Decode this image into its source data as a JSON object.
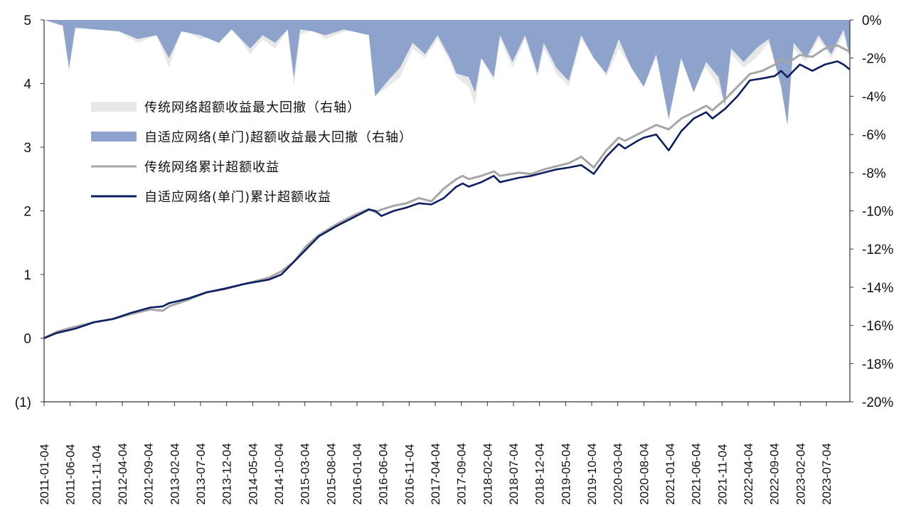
{
  "chart_data": {
    "type": "line+area",
    "y_left": {
      "ticks": [
        "(1)",
        "0",
        "1",
        "2",
        "3",
        "4",
        "5"
      ],
      "min": -1,
      "max": 5
    },
    "y_right": {
      "ticks": [
        "0%",
        "-2%",
        "-4%",
        "-6%",
        "-8%",
        "-10%",
        "-12%",
        "-14%",
        "-16%",
        "-18%",
        "-20%"
      ],
      "min": -20,
      "max": 0,
      "unit": "%"
    },
    "x_ticks": [
      "2011-01-04",
      "2011-06-04",
      "2011-11-04",
      "2012-04-04",
      "2012-09-04",
      "2013-02-04",
      "2013-07-04",
      "2013-12-04",
      "2014-05-04",
      "2014-10-04",
      "2015-03-04",
      "2015-08-04",
      "2016-01-04",
      "2016-06-04",
      "2016-11-04",
      "2017-04-04",
      "2017-09-04",
      "2018-02-04",
      "2018-07-04",
      "2018-12-04",
      "2019-05-04",
      "2019-10-04",
      "2020-03-04",
      "2020-08-04",
      "2021-01-04",
      "2021-06-04",
      "2021-11-04",
      "2022-04-04",
      "2022-09-04",
      "2023-02-04",
      "2023-07-04"
    ],
    "legend": [
      {
        "label": "传统网络超额收益最大回撤（右轴）",
        "kind": "area",
        "color": "#e8e8e8"
      },
      {
        "label": "自适应网络(单门)超额收益最大回撤（右轴）",
        "kind": "area",
        "color": "#8ea3cc"
      },
      {
        "label": "传统网络累计超额收益",
        "kind": "line",
        "color": "#a6a6a6"
      },
      {
        "label": "自适应网络(单门)累计超额收益",
        "kind": "line",
        "color": "#0d1f63"
      }
    ],
    "series": [
      {
        "name": "传统网络累计超额收益",
        "axis": "left",
        "color": "#a6a6a6",
        "points": [
          [
            0,
            0
          ],
          [
            2,
            0.1
          ],
          [
            5,
            0.18
          ],
          [
            8,
            0.25
          ],
          [
            11,
            0.3
          ],
          [
            14,
            0.38
          ],
          [
            17,
            0.45
          ],
          [
            19,
            0.43
          ],
          [
            20,
            0.5
          ],
          [
            23,
            0.6
          ],
          [
            26,
            0.72
          ],
          [
            29,
            0.77
          ],
          [
            32,
            0.85
          ],
          [
            36,
            0.95
          ],
          [
            38,
            1.05
          ],
          [
            40,
            1.2
          ],
          [
            42,
            1.45
          ],
          [
            44,
            1.62
          ],
          [
            47,
            1.8
          ],
          [
            50,
            1.95
          ],
          [
            52,
            2.03
          ],
          [
            53,
            1.98
          ],
          [
            54,
            2.02
          ],
          [
            56,
            2.08
          ],
          [
            58,
            2.12
          ],
          [
            60,
            2.2
          ],
          [
            62,
            2.15
          ],
          [
            64,
            2.35
          ],
          [
            66,
            2.5
          ],
          [
            67,
            2.55
          ],
          [
            68,
            2.5
          ],
          [
            70,
            2.55
          ],
          [
            72,
            2.62
          ],
          [
            73,
            2.55
          ],
          [
            76,
            2.6
          ],
          [
            78,
            2.58
          ],
          [
            80,
            2.65
          ],
          [
            82,
            2.7
          ],
          [
            84,
            2.75
          ],
          [
            86,
            2.85
          ],
          [
            88,
            2.68
          ],
          [
            90,
            2.95
          ],
          [
            92,
            3.15
          ],
          [
            93,
            3.1
          ],
          [
            95,
            3.2
          ],
          [
            96,
            3.25
          ],
          [
            98,
            3.35
          ],
          [
            100,
            3.28
          ],
          [
            102,
            3.45
          ],
          [
            104,
            3.55
          ],
          [
            106,
            3.65
          ],
          [
            107,
            3.58
          ],
          [
            109,
            3.75
          ],
          [
            111,
            3.95
          ],
          [
            113,
            4.15
          ],
          [
            115,
            4.2
          ],
          [
            117,
            4.3
          ],
          [
            118,
            4.4
          ],
          [
            119,
            4.32
          ],
          [
            121,
            4.45
          ],
          [
            123,
            4.42
          ],
          [
            125,
            4.55
          ],
          [
            127,
            4.6
          ],
          [
            128,
            4.55
          ],
          [
            129,
            4.5
          ]
        ]
      },
      {
        "name": "自适应网络(单门)累计超额收益",
        "axis": "left",
        "color": "#0d1f63",
        "points": [
          [
            0,
            0
          ],
          [
            2,
            0.08
          ],
          [
            5,
            0.15
          ],
          [
            8,
            0.25
          ],
          [
            11,
            0.3
          ],
          [
            14,
            0.4
          ],
          [
            17,
            0.48
          ],
          [
            19,
            0.5
          ],
          [
            20,
            0.55
          ],
          [
            23,
            0.62
          ],
          [
            26,
            0.72
          ],
          [
            29,
            0.78
          ],
          [
            32,
            0.85
          ],
          [
            36,
            0.92
          ],
          [
            38,
            1.0
          ],
          [
            40,
            1.2
          ],
          [
            42,
            1.4
          ],
          [
            44,
            1.6
          ],
          [
            47,
            1.77
          ],
          [
            50,
            1.92
          ],
          [
            52,
            2.02
          ],
          [
            53,
            2.0
          ],
          [
            54,
            1.92
          ],
          [
            56,
            2.0
          ],
          [
            58,
            2.05
          ],
          [
            60,
            2.12
          ],
          [
            62,
            2.1
          ],
          [
            64,
            2.2
          ],
          [
            66,
            2.38
          ],
          [
            67,
            2.43
          ],
          [
            68,
            2.38
          ],
          [
            70,
            2.45
          ],
          [
            72,
            2.55
          ],
          [
            73,
            2.45
          ],
          [
            76,
            2.52
          ],
          [
            78,
            2.55
          ],
          [
            80,
            2.6
          ],
          [
            82,
            2.65
          ],
          [
            84,
            2.68
          ],
          [
            86,
            2.72
          ],
          [
            88,
            2.58
          ],
          [
            90,
            2.85
          ],
          [
            92,
            3.05
          ],
          [
            93,
            2.98
          ],
          [
            95,
            3.1
          ],
          [
            96,
            3.15
          ],
          [
            98,
            3.2
          ],
          [
            100,
            2.95
          ],
          [
            102,
            3.25
          ],
          [
            104,
            3.45
          ],
          [
            106,
            3.55
          ],
          [
            107,
            3.45
          ],
          [
            109,
            3.6
          ],
          [
            111,
            3.8
          ],
          [
            113,
            4.05
          ],
          [
            115,
            4.08
          ],
          [
            117,
            4.12
          ],
          [
            118,
            4.2
          ],
          [
            119,
            4.1
          ],
          [
            121,
            4.3
          ],
          [
            123,
            4.2
          ],
          [
            125,
            4.3
          ],
          [
            127,
            4.35
          ],
          [
            128,
            4.3
          ],
          [
            129,
            4.22
          ]
        ]
      },
      {
        "name": "传统网络超额收益最大回撤（右轴）",
        "axis": "right",
        "color": "#e8e8e8",
        "points": [
          [
            0,
            0
          ],
          [
            3,
            -0.3
          ],
          [
            4,
            -2.8
          ],
          [
            5,
            -0.5
          ],
          [
            8,
            -0.4
          ],
          [
            12,
            -0.6
          ],
          [
            15,
            -1.2
          ],
          [
            18,
            -0.8
          ],
          [
            20,
            -2.5
          ],
          [
            22,
            -0.5
          ],
          [
            25,
            -1.0
          ],
          [
            28,
            -0.8
          ],
          [
            30,
            -0.4
          ],
          [
            33,
            -1.8
          ],
          [
            35,
            -1.0
          ],
          [
            37,
            -1.5
          ],
          [
            39,
            -0.5
          ],
          [
            40,
            -3.5
          ],
          [
            41,
            -0.8
          ],
          [
            43,
            -0.5
          ],
          [
            45,
            -1.0
          ],
          [
            48,
            -0.6
          ],
          [
            52,
            -0.5
          ],
          [
            53,
            -4.0
          ],
          [
            55,
            -3.5
          ],
          [
            57,
            -3.0
          ],
          [
            59,
            -1.5
          ],
          [
            61,
            -2.0
          ],
          [
            63,
            -1.0
          ],
          [
            65,
            -2.2
          ],
          [
            66,
            -3.0
          ],
          [
            68,
            -3.5
          ],
          [
            69,
            -4.5
          ],
          [
            70,
            -2.0
          ],
          [
            72,
            -3.2
          ],
          [
            73,
            -1.0
          ],
          [
            75,
            -2.5
          ],
          [
            77,
            -1.0
          ],
          [
            79,
            -3.0
          ],
          [
            80,
            -1.5
          ],
          [
            82,
            -2.8
          ],
          [
            84,
            -3.5
          ],
          [
            86,
            -1.0
          ],
          [
            88,
            -2.0
          ],
          [
            90,
            -3.0
          ],
          [
            92,
            -1.5
          ],
          [
            94,
            -2.5
          ],
          [
            96,
            -3.5
          ],
          [
            98,
            -2.0
          ],
          [
            100,
            -4.0
          ],
          [
            102,
            -2.0
          ],
          [
            104,
            -3.0
          ],
          [
            106,
            -2.5
          ],
          [
            108,
            -3.5
          ],
          [
            109,
            -4.5
          ],
          [
            110,
            -1.8
          ],
          [
            112,
            -2.5
          ],
          [
            114,
            -2.0
          ],
          [
            116,
            -1.2
          ],
          [
            118,
            -3.0
          ],
          [
            120,
            -1.5
          ],
          [
            122,
            -2.2
          ],
          [
            124,
            -1.0
          ],
          [
            126,
            -2.0
          ],
          [
            128,
            -0.8
          ],
          [
            129,
            -1.5
          ]
        ]
      },
      {
        "name": "自适应网络(单门)超额收益最大回撤（右轴）",
        "axis": "right",
        "color": "#8ea3cc",
        "points": [
          [
            0,
            0
          ],
          [
            3,
            -0.3
          ],
          [
            4,
            -2.5
          ],
          [
            5,
            -0.4
          ],
          [
            8,
            -0.5
          ],
          [
            12,
            -0.6
          ],
          [
            15,
            -1.0
          ],
          [
            18,
            -0.8
          ],
          [
            20,
            -2.0
          ],
          [
            22,
            -0.6
          ],
          [
            25,
            -0.8
          ],
          [
            28,
            -1.2
          ],
          [
            30,
            -0.5
          ],
          [
            33,
            -1.5
          ],
          [
            35,
            -0.8
          ],
          [
            37,
            -1.2
          ],
          [
            39,
            -0.5
          ],
          [
            40,
            -3.0
          ],
          [
            41,
            -0.5
          ],
          [
            43,
            -0.6
          ],
          [
            45,
            -0.8
          ],
          [
            48,
            -0.5
          ],
          [
            52,
            -0.8
          ],
          [
            53,
            -4.0
          ],
          [
            55,
            -3.2
          ],
          [
            57,
            -2.5
          ],
          [
            59,
            -1.2
          ],
          [
            61,
            -1.8
          ],
          [
            63,
            -0.8
          ],
          [
            65,
            -2.0
          ],
          [
            66,
            -2.8
          ],
          [
            68,
            -3.0
          ],
          [
            69,
            -3.8
          ],
          [
            70,
            -2.0
          ],
          [
            72,
            -3.0
          ],
          [
            73,
            -0.8
          ],
          [
            75,
            -2.2
          ],
          [
            77,
            -0.8
          ],
          [
            79,
            -2.8
          ],
          [
            80,
            -1.2
          ],
          [
            82,
            -2.5
          ],
          [
            84,
            -3.2
          ],
          [
            86,
            -0.8
          ],
          [
            88,
            -2.0
          ],
          [
            90,
            -2.8
          ],
          [
            92,
            -1.0
          ],
          [
            94,
            -2.5
          ],
          [
            96,
            -3.5
          ],
          [
            98,
            -1.8
          ],
          [
            100,
            -5.2
          ],
          [
            102,
            -2.0
          ],
          [
            104,
            -3.8
          ],
          [
            106,
            -2.2
          ],
          [
            108,
            -3.0
          ],
          [
            109,
            -4.5
          ],
          [
            110,
            -1.5
          ],
          [
            112,
            -2.2
          ],
          [
            114,
            -1.5
          ],
          [
            116,
            -1.0
          ],
          [
            118,
            -3.5
          ],
          [
            119,
            -5.5
          ],
          [
            120,
            -1.2
          ],
          [
            122,
            -2.0
          ],
          [
            124,
            -0.8
          ],
          [
            126,
            -1.8
          ],
          [
            128,
            -0.5
          ],
          [
            129,
            -2.0
          ]
        ]
      }
    ],
    "x_index_range": [
      0,
      129
    ],
    "x_index_unit": "approximate month index from 2011-01"
  }
}
